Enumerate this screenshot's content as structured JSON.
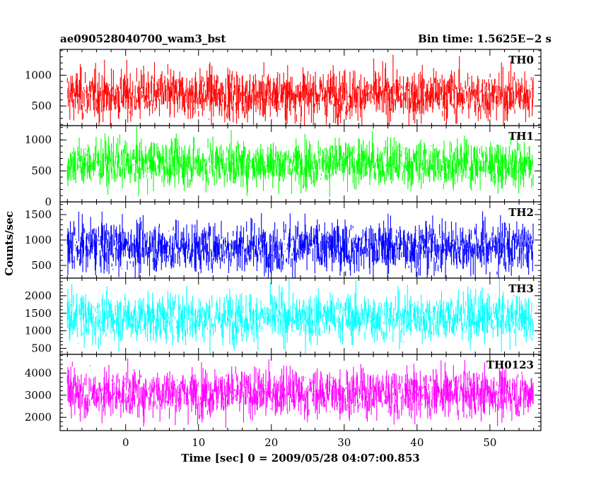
{
  "chart_data": {
    "type": "line",
    "title_left": "ae090528040700_wam3_bst",
    "title_right": "Bin time: 1.5625E−2 s",
    "xlabel": "Time [sec] 0 = 2009/05/28 04:07:00.853",
    "ylabel": "Counts/sec",
    "xlim": [
      -9,
      57
    ],
    "x_data_range": [
      -8,
      56
    ],
    "xticks": [
      0,
      10,
      20,
      30,
      40,
      50
    ],
    "x_tick_labels": [
      "0",
      "10",
      "20",
      "30",
      "40",
      "50"
    ],
    "panels": [
      {
        "name": "TH0",
        "color": "#ff0000",
        "ylim": [
          180,
          1420
        ],
        "yticks": [
          500,
          1000
        ],
        "y_tick_labels": [
          "500",
          "1000"
        ],
        "level": 680,
        "low": 140,
        "high": 1430
      },
      {
        "name": "TH1",
        "color": "#00ff00",
        "ylim": [
          0,
          1230
        ],
        "yticks": [
          0,
          500,
          1000
        ],
        "y_tick_labels": [
          "0",
          "500",
          "1000"
        ],
        "level": 620,
        "low": 60,
        "high": 1240
      },
      {
        "name": "TH2",
        "color": "#0000ff",
        "ylim": [
          250,
          1750
        ],
        "yticks": [
          500,
          1000,
          1500
        ],
        "y_tick_labels": [
          "500",
          "1000",
          "1500"
        ],
        "level": 870,
        "low": 150,
        "high": 1750
      },
      {
        "name": "TH3",
        "color": "#00ffff",
        "ylim": [
          330,
          2500
        ],
        "yticks": [
          500,
          1000,
          1500,
          2000
        ],
        "y_tick_labels": [
          "500",
          "1000",
          "1500",
          "2000"
        ],
        "level": 1380,
        "low": 330,
        "high": 2500
      },
      {
        "name": "TH0123",
        "color": "#ff00ff",
        "ylim": [
          1400,
          4850
        ],
        "yticks": [
          2000,
          3000,
          4000
        ],
        "y_tick_labels": [
          "2000",
          "3000",
          "4000"
        ],
        "level": 3100,
        "low": 1400,
        "high": 4850
      }
    ]
  }
}
